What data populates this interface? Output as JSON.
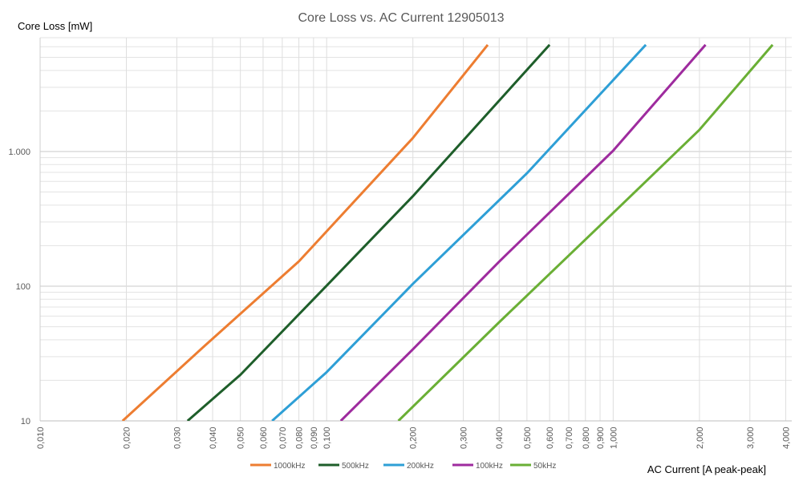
{
  "chart_data": {
    "type": "line",
    "title": "Core Loss vs. AC Current 12905013",
    "xlabel": "AC Current [A peak-peak]",
    "ylabel": "Core Loss [mW]",
    "x_scale": "log",
    "y_scale": "log",
    "xlim": [
      0.01,
      4.2
    ],
    "ylim": [
      10,
      7000
    ],
    "grid": true,
    "legend_position": "bottom",
    "x_ticks": [
      {
        "value": 0.01,
        "label": "0,010"
      },
      {
        "value": 0.02,
        "label": "0,020"
      },
      {
        "value": 0.03,
        "label": "0,030"
      },
      {
        "value": 0.04,
        "label": "0,040"
      },
      {
        "value": 0.05,
        "label": "0,050"
      },
      {
        "value": 0.06,
        "label": "0,060"
      },
      {
        "value": 0.07,
        "label": "0,070"
      },
      {
        "value": 0.08,
        "label": "0,080"
      },
      {
        "value": 0.09,
        "label": "0,090"
      },
      {
        "value": 0.1,
        "label": "0,100"
      },
      {
        "value": 0.2,
        "label": "0,200"
      },
      {
        "value": 0.3,
        "label": "0,300"
      },
      {
        "value": 0.4,
        "label": "0,400"
      },
      {
        "value": 0.5,
        "label": "0,500"
      },
      {
        "value": 0.6,
        "label": "0,600"
      },
      {
        "value": 0.7,
        "label": "0,700"
      },
      {
        "value": 0.8,
        "label": "0,800"
      },
      {
        "value": 0.9,
        "label": "0,900"
      },
      {
        "value": 1.0,
        "label": "1,000"
      },
      {
        "value": 2.0,
        "label": "2,000"
      },
      {
        "value": 3.0,
        "label": "3,000"
      },
      {
        "value": 4.0,
        "label": "4,000"
      }
    ],
    "y_ticks": [
      {
        "value": 10,
        "label": "10"
      },
      {
        "value": 100,
        "label": "100"
      },
      {
        "value": 1000,
        "label": "1.000"
      }
    ],
    "series": [
      {
        "name": "1000kHz",
        "color": "#ED7D31",
        "x": [
          0.0194,
          0.0375,
          0.08,
          0.2,
          0.365
        ],
        "y": [
          10,
          36,
          153,
          1260,
          6200
        ]
      },
      {
        "name": "500kHz",
        "color": "#1E5E2A",
        "x": [
          0.0327,
          0.05,
          0.1,
          0.2,
          0.6
        ],
        "y": [
          10,
          22,
          101,
          466,
          6200
        ]
      },
      {
        "name": "200kHz",
        "color": "#2E9FD6",
        "x": [
          0.0645,
          0.1,
          0.2,
          0.5,
          1.3
        ],
        "y": [
          10,
          23,
          104,
          690,
          6200
        ]
      },
      {
        "name": "100kHz",
        "color": "#9E2B9E",
        "x": [
          0.112,
          0.2,
          0.4,
          1.0,
          2.1
        ],
        "y": [
          10,
          34,
          152,
          1015,
          6200
        ]
      },
      {
        "name": "50kHz",
        "color": "#6AAF35",
        "x": [
          0.178,
          0.4,
          1.0,
          2.0,
          3.6
        ],
        "y": [
          10,
          54,
          350,
          1450,
          6200
        ]
      }
    ]
  }
}
